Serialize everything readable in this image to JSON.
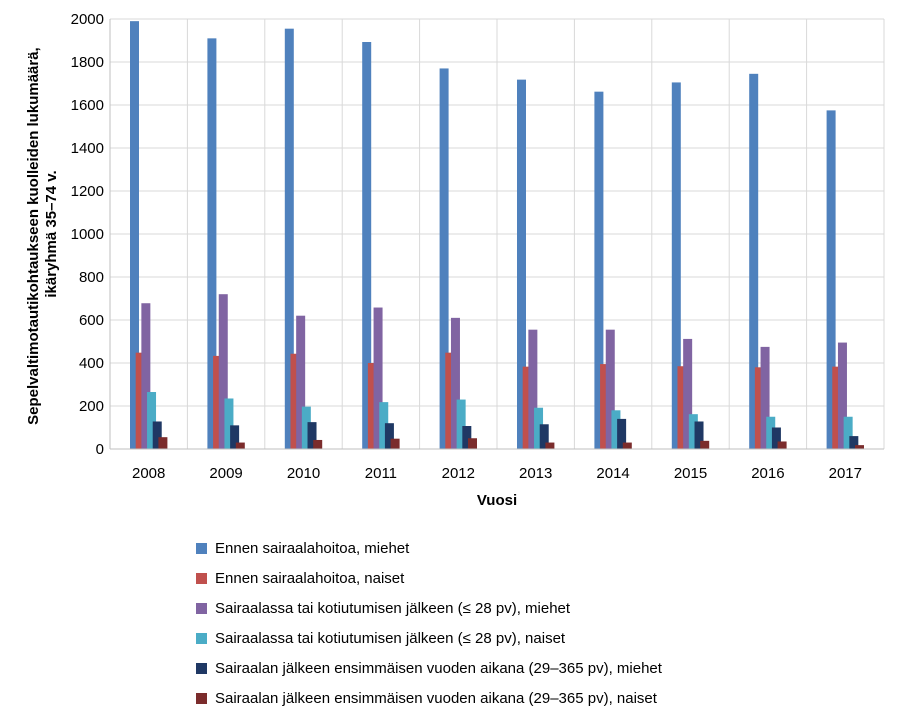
{
  "chart_data": {
    "type": "bar",
    "categories": [
      "2008",
      "2009",
      "2010",
      "2011",
      "2012",
      "2013",
      "2014",
      "2015",
      "2016",
      "2017"
    ],
    "series": [
      {
        "name": "Ennen sairaalahoitoa, miehet",
        "color": "#4f81bd",
        "values": [
          1990,
          1910,
          1955,
          1893,
          1770,
          1718,
          1662,
          1705,
          1745,
          1575
        ]
      },
      {
        "name": "Ennen sairaalahoitoa, naiset",
        "color": "#c0504d",
        "values": [
          448,
          433,
          443,
          400,
          448,
          383,
          395,
          385,
          380,
          383
        ]
      },
      {
        "name": "Sairaalassa tai kotiutumisen jälkeen (≤ 28 pv), miehet",
        "color": "#8064a2",
        "values": [
          678,
          720,
          620,
          658,
          610,
          555,
          555,
          512,
          475,
          495
        ]
      },
      {
        "name": "Sairaalassa tai kotiutumisen jälkeen (≤ 28 pv), naiset",
        "color": "#4bacc6",
        "values": [
          265,
          235,
          197,
          218,
          230,
          192,
          180,
          162,
          150,
          150
        ]
      },
      {
        "name": "Sairaalan jälkeen ensimmäisen vuoden aikana (29–365 pv), miehet",
        "color": "#1f3864",
        "values": [
          128,
          110,
          125,
          120,
          107,
          115,
          140,
          128,
          100,
          60
        ]
      },
      {
        "name": "Sairaalan jälkeen ensimmäisen vuoden aikana (29–365 pv), naiset",
        "color": "#7b2c2c",
        "values": [
          55,
          30,
          42,
          48,
          50,
          30,
          30,
          38,
          35,
          18
        ]
      }
    ],
    "xlabel": "Vuosi",
    "ylabel": [
      "Sepelvaltimotautikohtaukseen kuolleiden lukumäärä,",
      "ikäryhmä 35–74 v."
    ],
    "ylim": [
      0,
      2000
    ],
    "yticks": [
      "0",
      "200",
      "400",
      "600",
      "800",
      "1000",
      "1200",
      "1400",
      "1600",
      "1800",
      "2000"
    ],
    "grid": true,
    "legend_position": "bottom"
  }
}
